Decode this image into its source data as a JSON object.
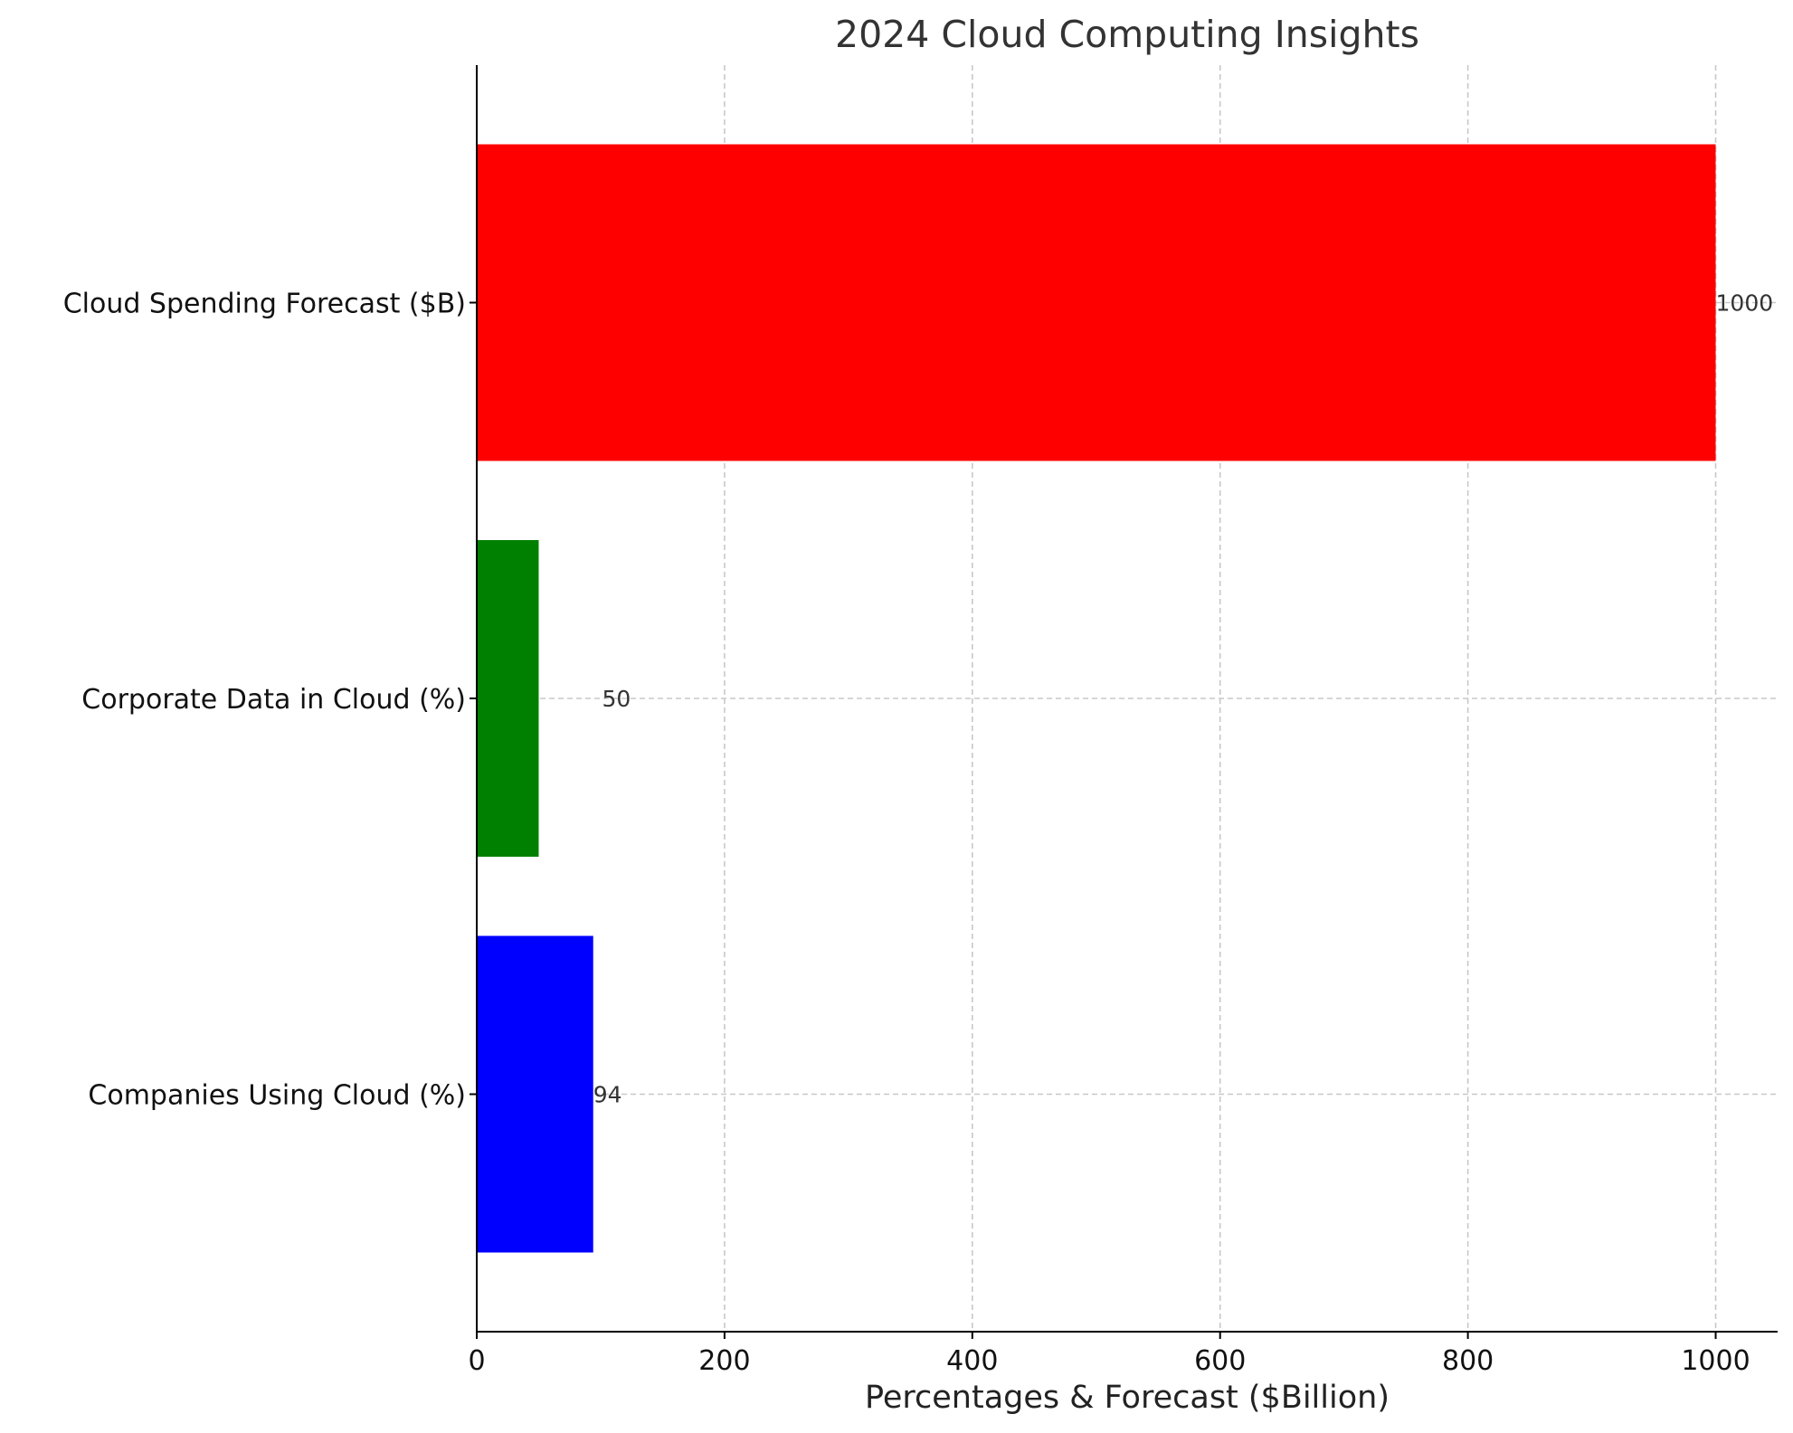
{
  "chart_data": {
    "type": "bar",
    "orientation": "horizontal",
    "title": "2024 Cloud Computing Insights",
    "xlabel": "Percentages & Forecast ($Billion)",
    "ylabel": "",
    "categories": [
      "Companies Using Cloud (%)",
      "Corporate Data in Cloud (%)",
      "Cloud Spending Forecast ($B)"
    ],
    "values": [
      94,
      50,
      1000
    ],
    "value_labels": [
      "94",
      "50",
      "1000"
    ],
    "colors": [
      "#0000ff",
      "#008000",
      "#ff0000"
    ],
    "xlim": [
      0,
      1050
    ],
    "xticks": [
      0,
      200,
      400,
      600,
      800,
      1000
    ],
    "xtick_labels": [
      "0",
      "200",
      "400",
      "600",
      "800",
      "1000"
    ],
    "grid": true,
    "legend": "none"
  }
}
